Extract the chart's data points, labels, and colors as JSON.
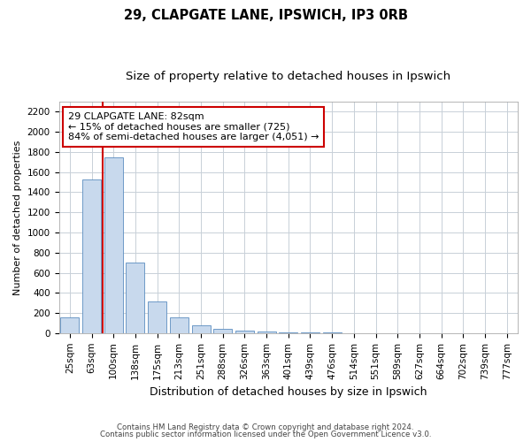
{
  "title1": "29, CLAPGATE LANE, IPSWICH, IP3 0RB",
  "title2": "Size of property relative to detached houses in Ipswich",
  "xlabel": "Distribution of detached houses by size in Ipswich",
  "ylabel": "Number of detached properties",
  "categories": [
    "25sqm",
    "63sqm",
    "100sqm",
    "138sqm",
    "175sqm",
    "213sqm",
    "251sqm",
    "288sqm",
    "326sqm",
    "363sqm",
    "401sqm",
    "439sqm",
    "476sqm",
    "514sqm",
    "551sqm",
    "589sqm",
    "627sqm",
    "664sqm",
    "702sqm",
    "739sqm",
    "777sqm"
  ],
  "values": [
    155,
    1530,
    1750,
    700,
    315,
    155,
    80,
    42,
    25,
    18,
    10,
    5,
    3,
    0,
    0,
    0,
    0,
    0,
    0,
    0,
    0
  ],
  "bar_color": "#c8d9ed",
  "bar_edge_color": "#5b8dc0",
  "vline_color": "#cc0000",
  "vline_x_index": 1.5,
  "annotation_text": "29 CLAPGATE LANE: 82sqm\n← 15% of detached houses are smaller (725)\n84% of semi-detached houses are larger (4,051) →",
  "annotation_box_color": "#ffffff",
  "annotation_box_edge": "#cc0000",
  "ylim": [
    0,
    2300
  ],
  "yticks": [
    0,
    200,
    400,
    600,
    800,
    1000,
    1200,
    1400,
    1600,
    1800,
    2000,
    2200
  ],
  "footer1": "Contains HM Land Registry data © Crown copyright and database right 2024.",
  "footer2": "Contains public sector information licensed under the Open Government Licence v3.0.",
  "bg_color": "#ffffff",
  "grid_color": "#c8d0d8",
  "title1_fontsize": 10.5,
  "title2_fontsize": 9.5,
  "axis_fontsize": 7.5,
  "ylabel_fontsize": 8,
  "xlabel_fontsize": 9
}
